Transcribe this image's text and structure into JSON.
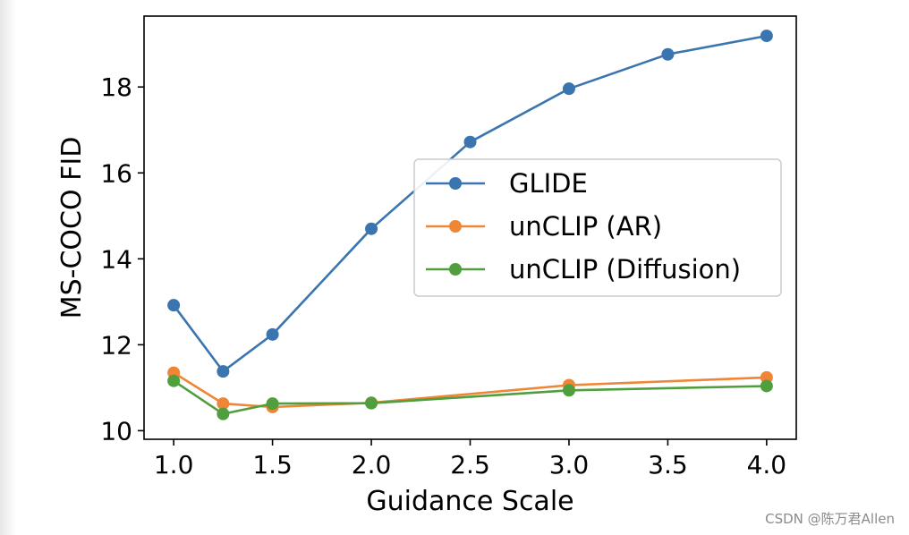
{
  "chart_data": {
    "type": "line",
    "title": "",
    "xlabel": "Guidance Scale",
    "ylabel": "MS-COCO FID",
    "xlim": [
      0.85,
      4.15
    ],
    "ylim": [
      9.8,
      19.65
    ],
    "x_ticks": [
      {
        "value": 1.0,
        "label": "1.0"
      },
      {
        "value": 1.5,
        "label": "1.5"
      },
      {
        "value": 2.0,
        "label": "2.0"
      },
      {
        "value": 2.5,
        "label": "2.5"
      },
      {
        "value": 3.0,
        "label": "3.0"
      },
      {
        "value": 3.5,
        "label": "3.5"
      },
      {
        "value": 4.0,
        "label": "4.0"
      }
    ],
    "y_ticks": [
      {
        "value": 10,
        "label": "10"
      },
      {
        "value": 12,
        "label": "12"
      },
      {
        "value": 14,
        "label": "14"
      },
      {
        "value": 16,
        "label": "16"
      },
      {
        "value": 18,
        "label": "18"
      }
    ],
    "grid": false,
    "legend_position": "center-right",
    "series": [
      {
        "name": "GLIDE",
        "color": "#3b75af",
        "points": [
          {
            "x": 1.0,
            "y": 12.92
          },
          {
            "x": 1.25,
            "y": 11.38
          },
          {
            "x": 1.5,
            "y": 12.24
          },
          {
            "x": 2.0,
            "y": 14.7
          },
          {
            "x": 2.5,
            "y": 16.72
          },
          {
            "x": 3.0,
            "y": 17.96
          },
          {
            "x": 3.5,
            "y": 18.76
          },
          {
            "x": 4.0,
            "y": 19.19
          }
        ]
      },
      {
        "name": "unCLIP (AR)",
        "color": "#ef8636",
        "points": [
          {
            "x": 1.0,
            "y": 11.35
          },
          {
            "x": 1.25,
            "y": 10.63
          },
          {
            "x": 1.5,
            "y": 10.55
          },
          {
            "x": 2.0,
            "y": 10.65
          },
          {
            "x": 3.0,
            "y": 11.06
          },
          {
            "x": 4.0,
            "y": 11.24
          }
        ]
      },
      {
        "name": "unCLIP (Diffusion)",
        "color": "#519e3e",
        "points": [
          {
            "x": 1.0,
            "y": 11.16
          },
          {
            "x": 1.25,
            "y": 10.39
          },
          {
            "x": 1.5,
            "y": 10.63
          },
          {
            "x": 2.0,
            "y": 10.64
          },
          {
            "x": 3.0,
            "y": 10.94
          },
          {
            "x": 4.0,
            "y": 11.04
          }
        ]
      }
    ]
  },
  "watermark": "CSDN @陈万君Allen"
}
